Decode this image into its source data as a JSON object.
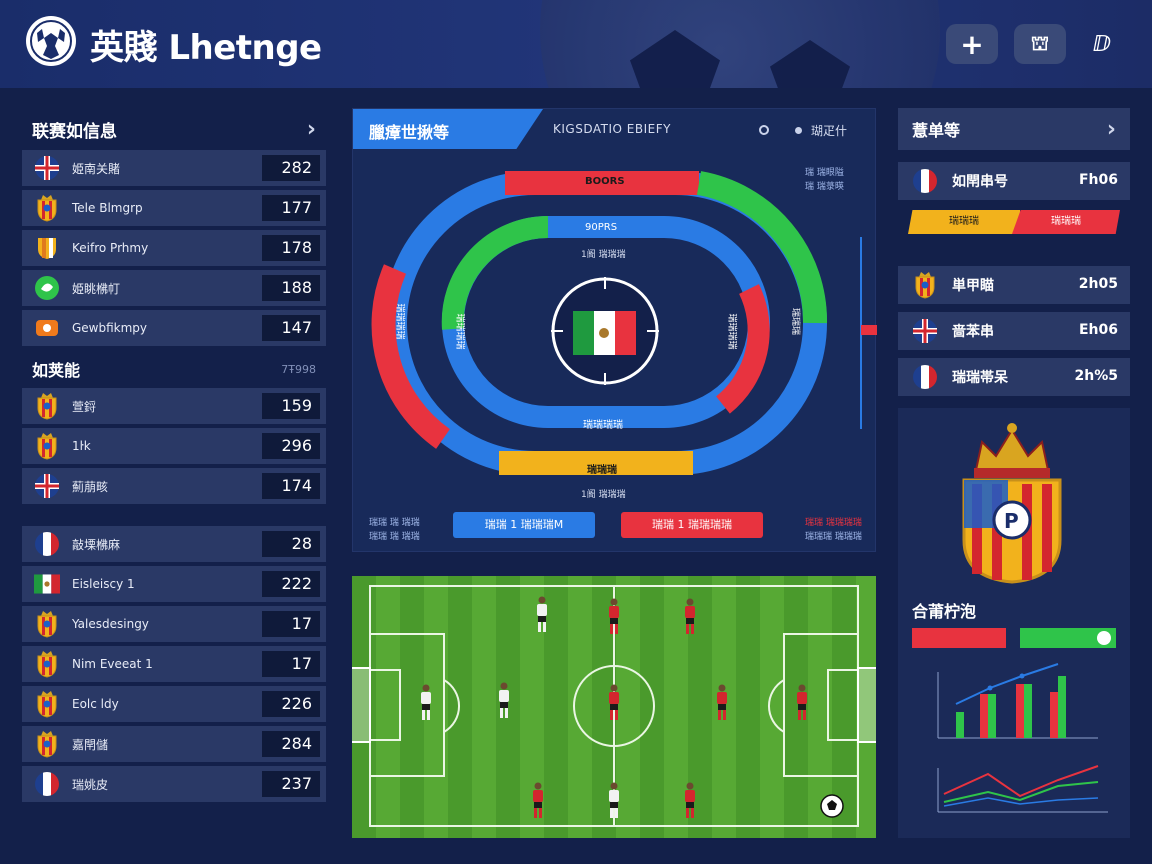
{
  "header": {
    "title": "英賤 Lhetnge",
    "buttons": {
      "add": "+",
      "second": "⛫",
      "third": "ⅅ"
    }
  },
  "left": {
    "section1_title": "联赛如信息",
    "section1_rows": [
      {
        "name": "姫南关賭",
        "value": "282",
        "icon": "flag-uk-icon"
      },
      {
        "name": "Tele Blmgrp",
        "value": "177",
        "icon": "crest-icon"
      },
      {
        "name": "Keifro Prhmy",
        "value": "178",
        "icon": "shield-icon"
      },
      {
        "name": "姫眺梻帄",
        "value": "188",
        "icon": "green-badge-icon"
      },
      {
        "name": "Gewbfikmpy",
        "value": "147",
        "icon": "orange-badge-icon"
      }
    ],
    "section2_title": "如荚能",
    "section2_extra": "7Ŧ998",
    "section2_rows": [
      {
        "name": "萱鋝",
        "value": "159",
        "icon": "crest-icon"
      },
      {
        "name": "1ŀk",
        "value": "296",
        "icon": "crest-icon"
      },
      {
        "name": "薊萠畡",
        "value": "174",
        "icon": "flag-uk-icon"
      }
    ],
    "section3_rows": [
      {
        "name": "敲塛梻麻",
        "value": "28",
        "icon": "flag-fr-icon"
      },
      {
        "name": "Eisleiscy 1",
        "value": "222",
        "icon": "flag-mx-icon"
      },
      {
        "name": "Yalesdesingy",
        "value": "17",
        "icon": "crest-icon"
      },
      {
        "name": "Nim Eveeat 1",
        "value": "17",
        "icon": "crest-icon"
      },
      {
        "name": "Eolc ldy",
        "value": "226",
        "icon": "crest-icon"
      },
      {
        "name": "嘉閈儲",
        "value": "284",
        "icon": "crest-icon"
      },
      {
        "name": "瑞姚皮",
        "value": "237",
        "icon": "flag-fr-icon"
      }
    ]
  },
  "center": {
    "tab_label": "臘瘴世揪等",
    "header_label": "KIGSDATIO EBIEFY",
    "header_right": "瑚疋什",
    "top_right_mini": [
      "瑞 瑞眼隘",
      "瑞 瑞菉暎"
    ],
    "track_labels": {
      "outer_top": "BOORS",
      "inner_top": "90PRS",
      "under_inner_top": "1阍 瑞瑞瑞",
      "left_outer": "瑞瑞瑞瑞",
      "left_inner": "瑞瑞瑞瑞",
      "right_inner": "瑞瑞瑞瑞",
      "right_outer": "瑞瑞瑞",
      "inner_bottom": "瑞瑞瑞瑞",
      "outer_bottom": "瑞瑞瑞",
      "below_track": "1阍 瑞瑞瑞"
    },
    "bottom_left_mini": [
      "瑞瑞 瑞 瑞瑞",
      "瑞瑞 瑞 瑞瑞"
    ],
    "pill_blue": "瑞瑞 1 瑞瑞瑞M",
    "pill_red": "瑞瑞 1 瑞瑞瑞瑞",
    "bottom_right_mini": [
      "瑞瑞 瑞瑞瑞瑞",
      "瑞瑞瑞 瑞瑞瑞"
    ]
  },
  "right": {
    "head_title": "薏单等",
    "rows_top": [
      {
        "name": "如閈串号",
        "value": "Fh06",
        "icon": "flag-fr-icon"
      }
    ],
    "bar_yellow": "瑞瑞瑞",
    "bar_red": "瑞瑞瑞",
    "rows_bottom": [
      {
        "name": "単甲瞄",
        "value": "2h05",
        "icon": "crest-icon"
      },
      {
        "name": "啬苯串",
        "value": "Eh06",
        "icon": "flag-uk-icon"
      },
      {
        "name": "瑞瑞帯呆",
        "value": "2h%5",
        "icon": "flag-fr-icon"
      }
    ],
    "stats_title": "合莆柠泡"
  },
  "colors": {
    "bg": "#13204a",
    "panel": "#2a3966",
    "accent_blue": "#2a7be4",
    "red": "#e8333f",
    "green": "#2fc44a",
    "yellow": "#f2b21c"
  }
}
